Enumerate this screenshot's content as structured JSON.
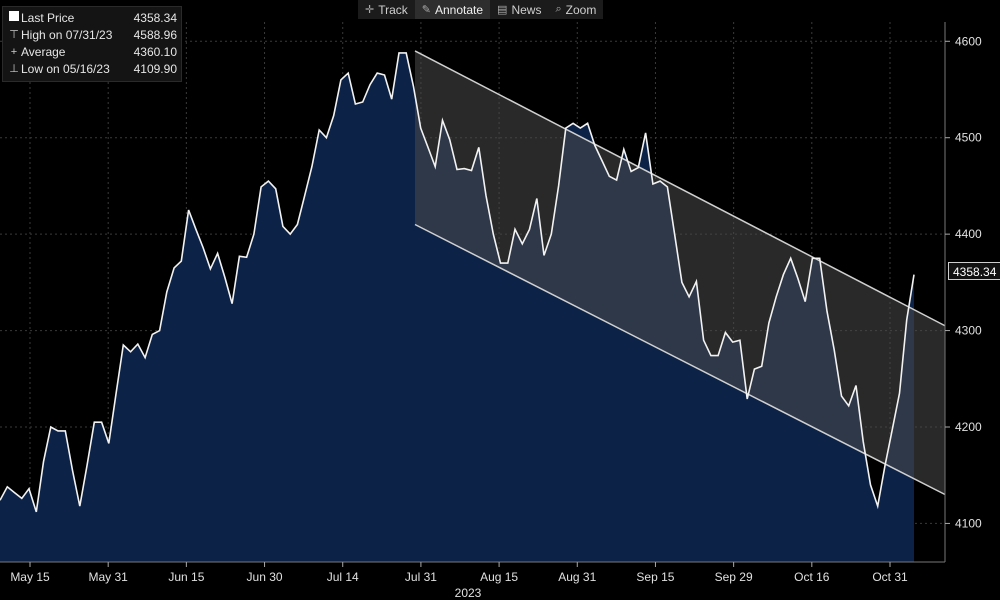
{
  "toolbar": {
    "items": [
      {
        "label": "Track",
        "icon": "crosshair-icon"
      },
      {
        "label": "Annotate",
        "icon": "pencil-icon",
        "active": true
      },
      {
        "label": "News",
        "icon": "news-icon"
      },
      {
        "label": "Zoom",
        "icon": "zoom-icon"
      }
    ]
  },
  "legend": {
    "last_price_label": "Last Price",
    "last_price_value": "4358.34",
    "high_label": "High on 07/31/23",
    "high_value": "4588.96",
    "average_label": "Average",
    "average_value": "4360.10",
    "low_label": "Low on 05/16/23",
    "low_value": "4109.90"
  },
  "price_tag": "4358.34",
  "chart_data": {
    "type": "area",
    "xlabel": "2023",
    "ylim": [
      4060,
      4620
    ],
    "y_ticks": [
      4100,
      4200,
      4300,
      4400,
      4500,
      4600
    ],
    "x_tick_labels": [
      "May 15",
      "May 31",
      "Jun 15",
      "Jun 30",
      "Jul 14",
      "Jul 31",
      "Aug 15",
      "Aug 31",
      "Sep 15",
      "Sep 29",
      "Oct 16",
      "Oct 31"
    ],
    "colors": {
      "fill": "#0c2347",
      "line": "#f2f2f2",
      "channel_fill": "#4a4a4a",
      "channel_line": "#d0d0d0"
    },
    "series": [
      {
        "values": [
          4124,
          4138,
          4132,
          4126,
          4136,
          4112,
          4164,
          4200,
          4196,
          4196,
          4155,
          4118,
          4160,
          4205,
          4205,
          4183,
          4235,
          4285,
          4278,
          4286,
          4272,
          4296,
          4300,
          4340,
          4365,
          4372,
          4425,
          4405,
          4386,
          4364,
          4380,
          4355,
          4328,
          4377,
          4376,
          4400,
          4449,
          4455,
          4447,
          4408,
          4400,
          4410,
          4440,
          4470,
          4508,
          4500,
          4523,
          4560,
          4567,
          4535,
          4537,
          4555,
          4567,
          4565,
          4540,
          4588,
          4588,
          4553,
          4510,
          4490,
          4470,
          4518,
          4498,
          4467,
          4468,
          4466,
          4490,
          4440,
          4400,
          4370,
          4370,
          4405,
          4390,
          4405,
          4437,
          4378,
          4400,
          4450,
          4510,
          4515,
          4510,
          4515,
          4492,
          4476,
          4460,
          4456,
          4488,
          4465,
          4469,
          4505,
          4452,
          4455,
          4449,
          4400,
          4350,
          4335,
          4351,
          4290,
          4274,
          4274,
          4298,
          4288,
          4290,
          4229,
          4260,
          4263,
          4308,
          4335,
          4358,
          4375,
          4354,
          4330,
          4375,
          4375,
          4320,
          4280,
          4232,
          4222,
          4243,
          4185,
          4140,
          4118,
          4160,
          4197,
          4235,
          4311,
          4358
        ]
      }
    ],
    "channel": {
      "upper": {
        "start": 4590,
        "end": 4305
      },
      "lower": {
        "start": 4410,
        "end": 4130
      }
    }
  }
}
